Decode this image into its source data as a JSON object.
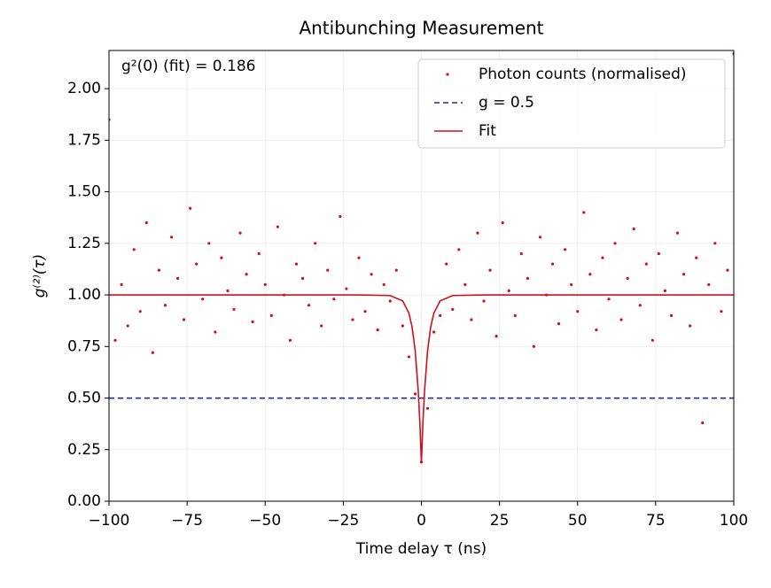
{
  "chart_data": {
    "type": "scatter",
    "title": "Antibunching Measurement",
    "xlabel": "Time delay τ (ns)",
    "ylabel": "g⁽²⁾(τ)",
    "annotation": "g²(0) (fit) = 0.186",
    "xlim": [
      -100,
      100
    ],
    "ylim": [
      0,
      2.185
    ],
    "xticks": [
      {
        "value": -100,
        "label": "−100"
      },
      {
        "value": -75,
        "label": "−75"
      },
      {
        "value": -50,
        "label": "−50"
      },
      {
        "value": -25,
        "label": "−25"
      },
      0,
      25,
      50,
      75,
      100
    ],
    "yticks": [
      {
        "value": 0,
        "label": "0.00"
      },
      {
        "value": 0.25,
        "label": "0.25"
      },
      {
        "value": 0.5,
        "label": "0.50"
      },
      {
        "value": 0.75,
        "label": "0.75"
      },
      {
        "value": 1,
        "label": "1.00"
      },
      {
        "value": 1.25,
        "label": "1.25"
      },
      {
        "value": 1.5,
        "label": "1.50"
      },
      {
        "value": 1.75,
        "label": "1.75"
      },
      {
        "value": 2,
        "label": "2.00"
      }
    ],
    "grid": true,
    "legend": "upper right",
    "series": [
      {
        "name": "Photon counts (normalised)",
        "color": "#d0101c",
        "kind": "points",
        "x": [
          -100,
          -98,
          -96,
          -94,
          -92,
          -90,
          -88,
          -86,
          -84,
          -82,
          -80,
          -78,
          -76,
          -74,
          -72,
          -70,
          -68,
          -66,
          -64,
          -62,
          -60,
          -58,
          -56,
          -54,
          -52,
          -50,
          -48,
          -46,
          -44,
          -42,
          -40,
          -38,
          -36,
          -34,
          -32,
          -30,
          -28,
          -26,
          -24,
          -22,
          -20,
          -18,
          -16,
          -14,
          -12,
          -10,
          -8,
          -6,
          -4,
          -2,
          0,
          2,
          4,
          6,
          8,
          10,
          12,
          14,
          16,
          18,
          20,
          22,
          24,
          26,
          28,
          30,
          32,
          34,
          36,
          38,
          40,
          42,
          44,
          46,
          48,
          50,
          52,
          54,
          56,
          58,
          60,
          62,
          64,
          66,
          68,
          70,
          72,
          74,
          76,
          78,
          80,
          82,
          84,
          86,
          88,
          90,
          92,
          94,
          96,
          98,
          100
        ],
        "values": [
          1.85,
          0.78,
          1.05,
          0.85,
          1.22,
          0.92,
          1.35,
          0.72,
          1.12,
          0.95,
          1.28,
          1.08,
          0.88,
          1.42,
          1.15,
          0.98,
          1.25,
          0.82,
          1.18,
          1.02,
          0.93,
          1.3,
          1.1,
          0.87,
          1.2,
          1.05,
          0.9,
          1.33,
          1.0,
          0.78,
          1.15,
          1.08,
          0.95,
          1.25,
          0.85,
          1.12,
          0.98,
          1.38,
          1.03,
          0.88,
          1.18,
          0.92,
          1.1,
          0.83,
          1.05,
          0.97,
          1.12,
          0.85,
          0.7,
          0.52,
          0.19,
          0.45,
          0.82,
          0.9,
          1.15,
          0.93,
          1.22,
          1.05,
          0.88,
          1.3,
          0.97,
          1.12,
          0.8,
          1.35,
          1.02,
          0.9,
          1.2,
          1.08,
          0.75,
          1.28,
          1.0,
          1.15,
          0.86,
          1.22,
          1.05,
          0.92,
          1.4,
          1.1,
          0.83,
          1.18,
          0.98,
          1.25,
          0.88,
          1.08,
          1.32,
          0.95,
          1.15,
          0.78,
          1.2,
          1.02,
          0.9,
          1.3,
          1.1,
          0.85,
          1.18,
          0.38,
          1.05,
          1.25,
          0.92,
          1.12,
          2.17
        ]
      },
      {
        "name": "g = 0.5",
        "color": "#1f2a8a",
        "kind": "dashed",
        "x": [
          -100,
          100
        ],
        "values": [
          0.5,
          0.5
        ]
      },
      {
        "name": "Fit",
        "color": "#d0101c",
        "kind": "line",
        "x": [
          -100,
          -20,
          -10,
          -6,
          -4,
          -3,
          -2,
          -1,
          -0.5,
          0,
          0.5,
          1,
          2,
          3,
          4,
          6,
          10,
          20,
          100
        ],
        "values": [
          1.0,
          1.0,
          0.997,
          0.971,
          0.912,
          0.846,
          0.732,
          0.533,
          0.384,
          0.186,
          0.384,
          0.533,
          0.732,
          0.846,
          0.912,
          0.971,
          0.997,
          1.0,
          1.0
        ]
      }
    ]
  }
}
